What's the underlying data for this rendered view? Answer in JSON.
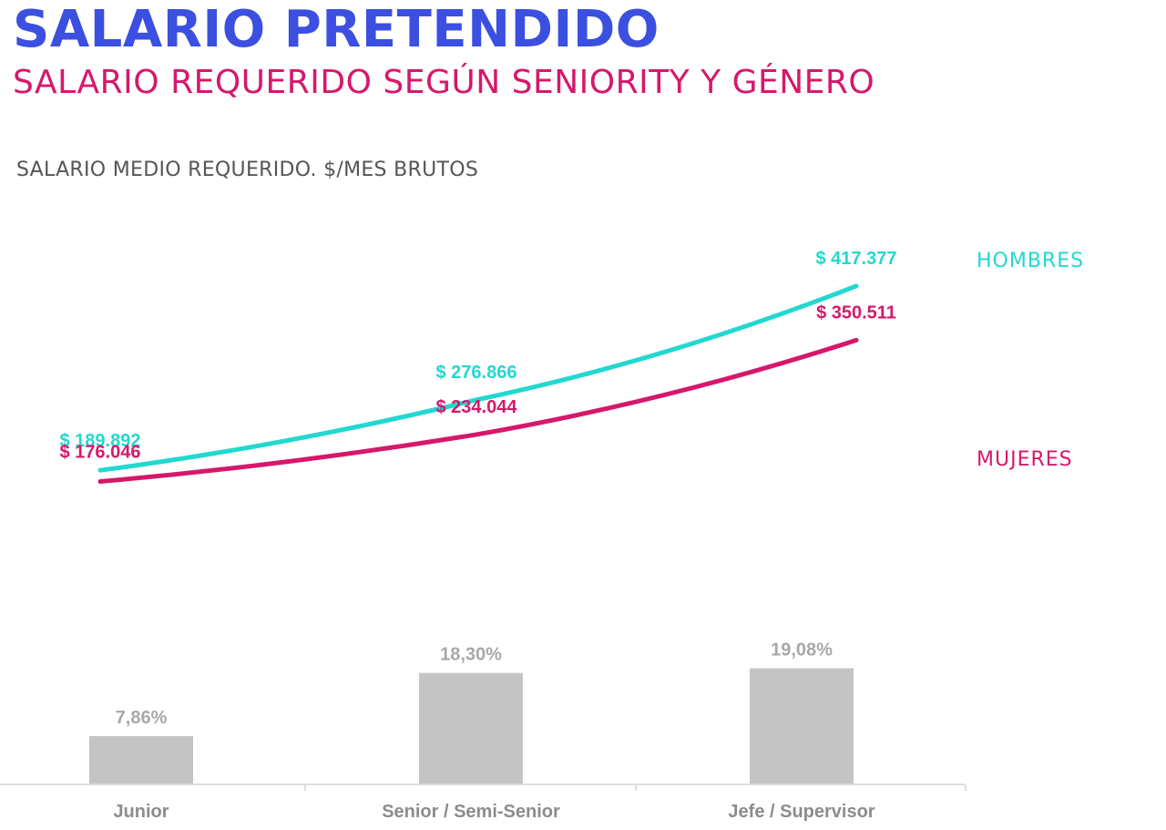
{
  "header": {
    "title": "SALARIO PRETENDIDO",
    "subtitle": "SALARIO REQUERIDO SEGÚN SENIORITY Y GÉNERO"
  },
  "chart_data": {
    "type": "line",
    "ylabel": "SALARIO MEDIO REQUERIDO. $/MES BRUTOS",
    "categories": [
      "Junior",
      "Senior / Semi-Senior",
      "Jefe / Supervisor"
    ],
    "series": [
      {
        "name": "HOMBRES",
        "color": "#22d8d0",
        "values": [
          189892,
          276866,
          417377
        ],
        "labels": [
          "$ 189.892",
          "$ 276.866",
          "$ 417.377"
        ]
      },
      {
        "name": "MUJERES",
        "color": "#d6186b",
        "values": [
          176046,
          234044,
          350511
        ],
        "labels": [
          "$ 176.046",
          "$ 234.044",
          "$ 350.511"
        ]
      }
    ],
    "bars": {
      "type": "bar",
      "color": "#c4c4c4",
      "values": [
        7.86,
        18.3,
        19.08
      ],
      "labels": [
        "7,86%",
        "18,30%",
        "19,08%"
      ]
    },
    "grid": false,
    "legend": "right"
  }
}
